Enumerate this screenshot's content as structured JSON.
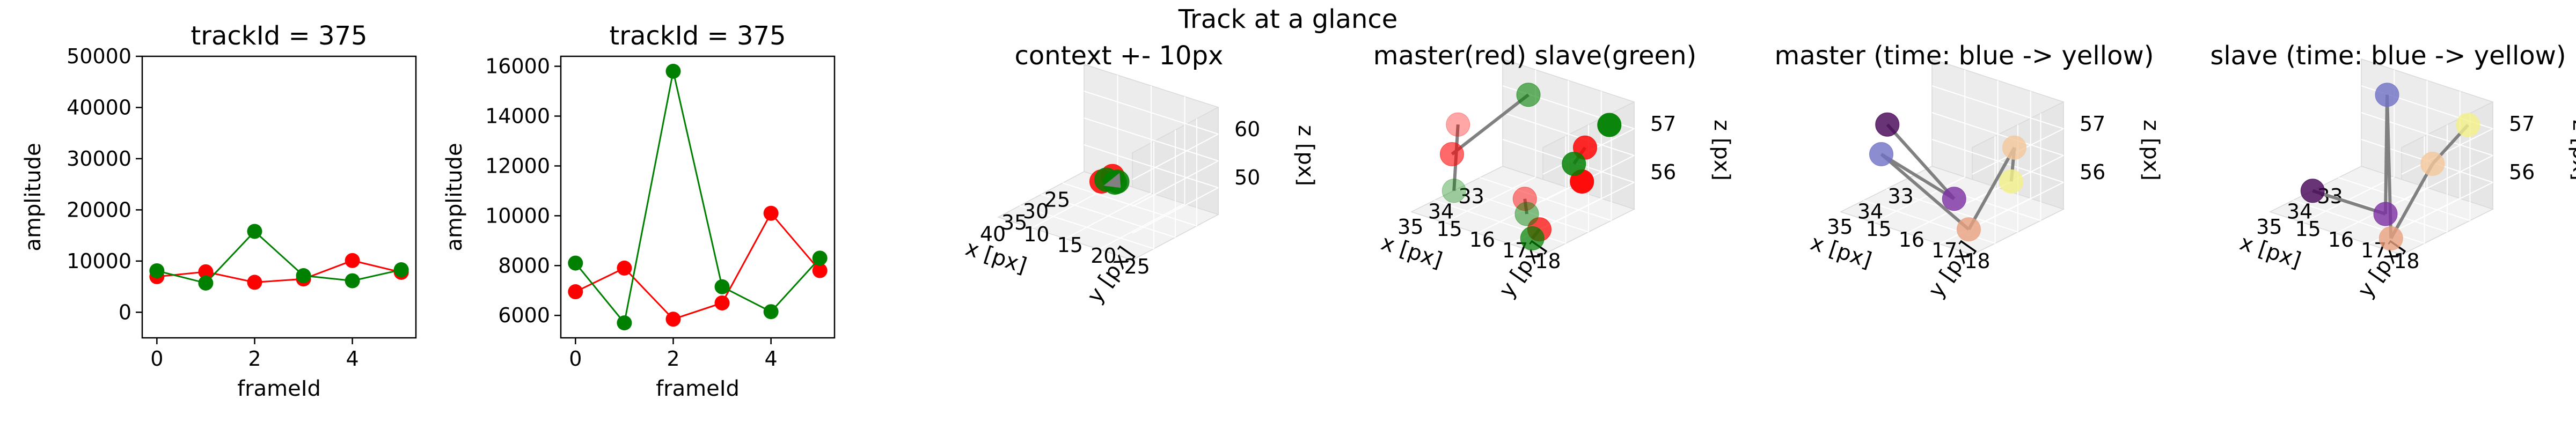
{
  "figure": {
    "title": "Track at a glance"
  },
  "colors": {
    "red": "#ff0000",
    "green": "#008000",
    "connector": "#808080",
    "pane": "#f2f2f2",
    "grid": "#e0e0e0",
    "viridis_start": "#440154",
    "viridis_mid": "#7b7fc4",
    "viridis_end": "#f6f25a"
  },
  "chart_data": [
    {
      "type": "line",
      "title": "trackId = 375",
      "xlabel": "frameId",
      "ylabel": "amplitude",
      "xlim": [
        -0.3,
        5.3
      ],
      "ylim": [
        -5000,
        50000
      ],
      "xticks": [
        "0",
        "2",
        "4"
      ],
      "yticks": [
        "0",
        "10000",
        "20000",
        "30000",
        "40000",
        "50000"
      ],
      "x": [
        0,
        1,
        2,
        3,
        4,
        5
      ],
      "series": [
        {
          "color": "red",
          "values": [
            6950,
            7900,
            5850,
            6500,
            10100,
            7800
          ]
        },
        {
          "color": "green",
          "values": [
            8100,
            5700,
            15800,
            7150,
            6150,
            8300
          ]
        }
      ]
    },
    {
      "type": "line",
      "title": "trackId = 375",
      "xlabel": "frameId",
      "ylabel": "amplitude",
      "xlim": [
        -0.3,
        5.3
      ],
      "ylim": [
        5100,
        16400
      ],
      "xticks": [
        "0",
        "2",
        "4"
      ],
      "yticks": [
        "6000",
        "8000",
        "10000",
        "12000",
        "14000",
        "16000"
      ],
      "x": [
        0,
        1,
        2,
        3,
        4,
        5
      ],
      "series": [
        {
          "color": "red",
          "values": [
            6950,
            7900,
            5850,
            6500,
            10100,
            7800
          ]
        },
        {
          "color": "green",
          "values": [
            8100,
            5700,
            15800,
            7150,
            6150,
            8300
          ]
        }
      ]
    },
    {
      "type": "scatter",
      "title": "context +- 10px",
      "xlabel": "x [px]",
      "ylabel": "y [px]",
      "zlabel": "z [px]",
      "xticks": [
        "25",
        "30",
        "35",
        "40"
      ],
      "yticks": [
        "10",
        "15",
        "20",
        "25"
      ],
      "zticks": [
        "50",
        "60"
      ],
      "points": [
        {
          "x": 32,
          "y": 17,
          "z": 55,
          "color": "red"
        },
        {
          "x": 33,
          "y": 16,
          "z": 56,
          "color": "red"
        },
        {
          "x": 34,
          "y": 17,
          "z": 56,
          "color": "green"
        },
        {
          "x": 34,
          "y": 16,
          "z": 55,
          "color": "green"
        },
        {
          "x": 35,
          "y": 17,
          "z": 56,
          "color": "green"
        }
      ]
    },
    {
      "type": "scatter",
      "title": "master(red) slave(green)",
      "xlabel": "x [px]",
      "ylabel": "y [px]",
      "zlabel": "z [px]",
      "xticks": [
        "33",
        "34",
        "35"
      ],
      "yticks": [
        "15",
        "16",
        "17",
        "18"
      ],
      "zticks": [
        "56",
        "57"
      ]
    },
    {
      "type": "scatter",
      "title": "master (time: blue -> yellow)",
      "xlabel": "x [px]",
      "ylabel": "y [px]",
      "zlabel": "z [px]",
      "xticks": [
        "33",
        "34",
        "35"
      ],
      "yticks": [
        "15",
        "16",
        "17",
        "18"
      ],
      "zticks": [
        "56",
        "57"
      ]
    },
    {
      "type": "scatter",
      "title": "slave (time: blue -> yellow)",
      "xlabel": "x [px]",
      "ylabel": "y [px]",
      "zlabel": "z [px]",
      "xticks": [
        "33",
        "34",
        "35"
      ],
      "yticks": [
        "15",
        "16",
        "17",
        "18"
      ],
      "zticks": [
        "56",
        "57"
      ]
    }
  ]
}
